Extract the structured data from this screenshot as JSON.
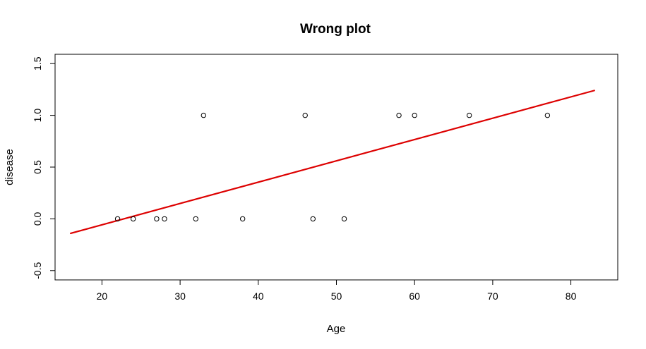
{
  "chart_data": {
    "type": "scatter",
    "title": "Wrong plot",
    "xlabel": "Age",
    "ylabel": "disease",
    "xlim": [
      14,
      86
    ],
    "ylim": [
      -0.59,
      1.59
    ],
    "xticks": [
      20,
      30,
      40,
      50,
      60,
      70,
      80
    ],
    "yticks": [
      -0.5,
      0.0,
      0.5,
      1.0,
      1.5
    ],
    "ytick_labels": [
      "-0.5",
      "0.0",
      "0.5",
      "1.0",
      "1.5"
    ],
    "points": [
      {
        "x": 22,
        "y": 0
      },
      {
        "x": 24,
        "y": 0
      },
      {
        "x": 27,
        "y": 0
      },
      {
        "x": 28,
        "y": 0
      },
      {
        "x": 32,
        "y": 0
      },
      {
        "x": 33,
        "y": 1
      },
      {
        "x": 38,
        "y": 0
      },
      {
        "x": 46,
        "y": 1
      },
      {
        "x": 47,
        "y": 0
      },
      {
        "x": 51,
        "y": 0
      },
      {
        "x": 58,
        "y": 1
      },
      {
        "x": 60,
        "y": 1
      },
      {
        "x": 67,
        "y": 1
      },
      {
        "x": 77,
        "y": 1
      }
    ],
    "fit_line": {
      "color": "#dd0000",
      "x": [
        16,
        83
      ],
      "y": [
        -0.14,
        1.24
      ]
    },
    "grid": false,
    "legend": "none",
    "point_marker": "open-circle"
  }
}
